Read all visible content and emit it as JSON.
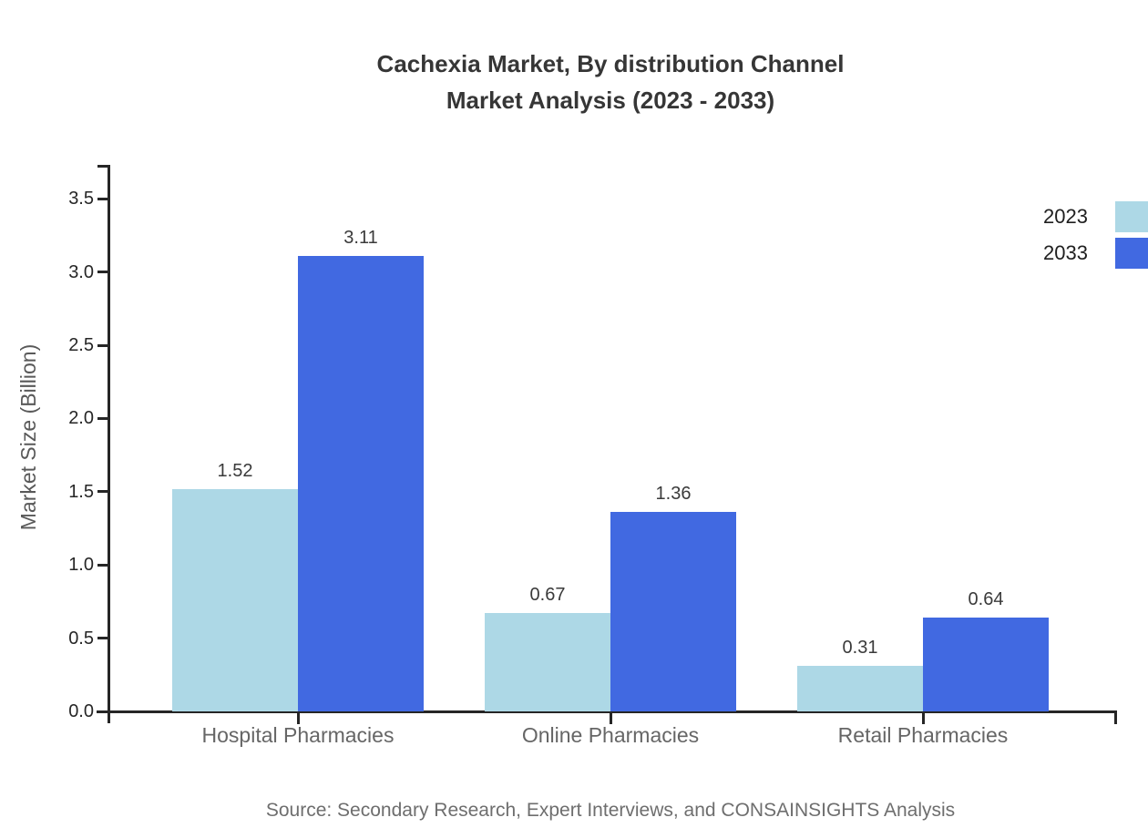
{
  "title": {
    "line1": "Cachexia Market, By distribution Channel",
    "line2": "Market Analysis (2023 - 2033)"
  },
  "source": {
    "text": "Source: Secondary Research, Expert Interviews, and CONSAINSIGHTS Analysis"
  },
  "legend": {
    "items": [
      {
        "label": "2023",
        "color": "#ADD8E6"
      },
      {
        "label": "2033",
        "color": "#4169E1"
      }
    ]
  },
  "colors": {
    "series_2023": "#ADD8E6",
    "series_2033": "#4169E1",
    "axis": "#262626",
    "title_text": "#363636",
    "category_label": "#666666",
    "value_label": "#3a3a3a",
    "source_text": "#6e6e6e"
  },
  "chart_data": {
    "type": "bar",
    "categories": [
      "Hospital Pharmacies",
      "Online Pharmacies",
      "Retail Pharmacies"
    ],
    "series": [
      {
        "name": "2023",
        "color": "#ADD8E6",
        "values": [
          1.52,
          0.67,
          0.31
        ]
      },
      {
        "name": "2033",
        "color": "#4169E1",
        "values": [
          3.11,
          1.36,
          0.64
        ]
      }
    ],
    "title": "Cachexia Market, By distribution Channel Market Analysis (2023 - 2033)",
    "xlabel": "",
    "ylabel": "Market Size (Billion)",
    "ylim": [
      0,
      3.7
    ],
    "yticks": [
      0,
      0.5,
      1,
      1.5,
      2,
      2.5,
      3,
      3.5
    ],
    "grid": false,
    "legend_position": "top-right",
    "value_labels": true
  }
}
